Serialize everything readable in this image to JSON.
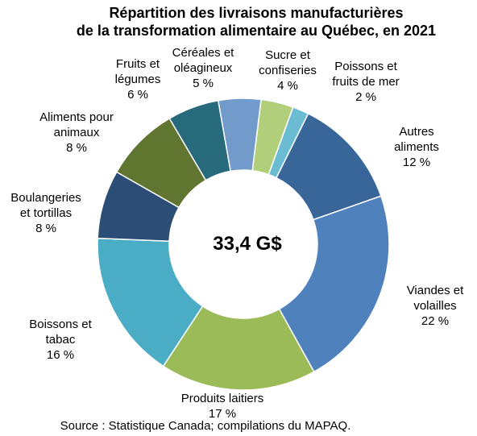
{
  "chart_data": {
    "type": "pie",
    "variant": "donut",
    "title": "Répartition des livraisons manufacturières",
    "subtitle": "de la transformation alimentaire au Québec, en 2021",
    "center_label": "33,4 G$",
    "source": "Source : Statistique Canada; compilations du MAPAQ.",
    "slices": [
      {
        "name": "Sucre et confiseries",
        "lines": [
          "Sucre et",
          "confiseries"
        ],
        "value_label": "4 %",
        "value": 3.6,
        "color": "#B1CF7B"
      },
      {
        "name": "Poissons et fruits de mer",
        "lines": [
          "Poissons et",
          "fruits de mer"
        ],
        "value_label": "2 %",
        "value": 1.8,
        "color": "#6BBCD3"
      },
      {
        "name": "Autres aliments",
        "lines": [
          "Autres",
          "aliments"
        ],
        "value_label": "12 %",
        "value": 12.3,
        "color": "#396699"
      },
      {
        "name": "Viandes et volailles",
        "lines": [
          "Viandes et",
          "volailles"
        ],
        "value_label": "22 %",
        "value": 22.3,
        "color": "#4F81BD"
      },
      {
        "name": "Produits laitiers",
        "lines": [
          "Produits laitiers"
        ],
        "value_label": "17 %",
        "value": 17.3,
        "color": "#9BBB59"
      },
      {
        "name": "Boissons et tabac",
        "lines": [
          "Boissons et",
          "tabac"
        ],
        "value_label": "16 %",
        "value": 16.4,
        "color": "#4BACC6"
      },
      {
        "name": "Boulangeries et tortillas",
        "lines": [
          "Boulangeries",
          "et tortillas"
        ],
        "value_label": "8 %",
        "value": 7.6,
        "color": "#2C4D75"
      },
      {
        "name": "Aliments pour animaux",
        "lines": [
          "Aliments pour",
          "animaux"
        ],
        "value_label": "8 %",
        "value": 8.3,
        "color": "#5F7530"
      },
      {
        "name": "Fruits et légumes",
        "lines": [
          "Fruits et",
          "légumes"
        ],
        "value_label": "6 %",
        "value": 5.7,
        "color": "#276A7C"
      },
      {
        "name": "Céréales et oléagineux",
        "lines": [
          "Céréales et",
          "oléagineux"
        ],
        "value_label": "5 %",
        "value": 4.7,
        "color": "#729ACA"
      }
    ]
  }
}
